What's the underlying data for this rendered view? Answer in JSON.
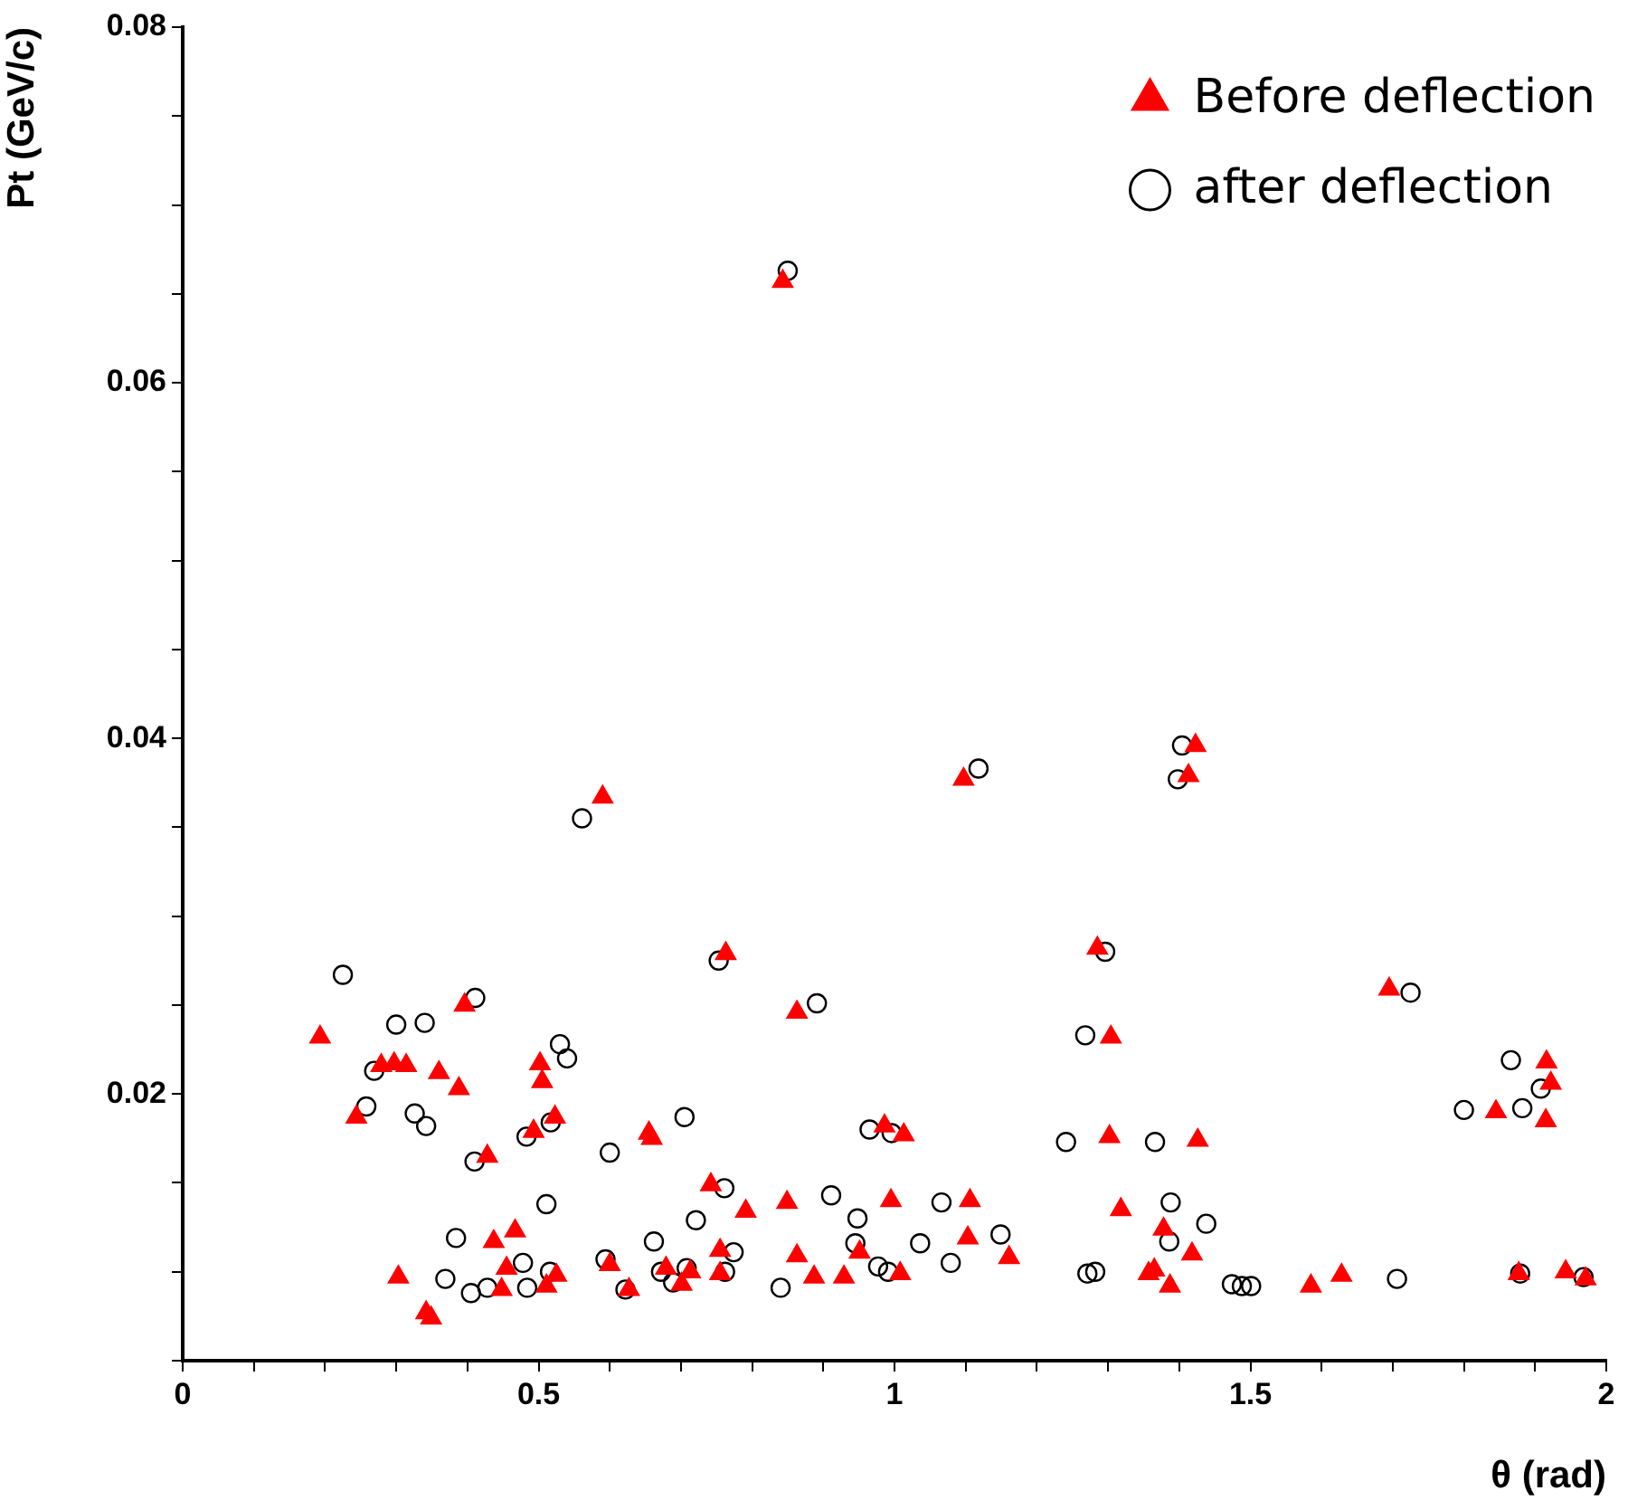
{
  "chart_data": {
    "type": "scatter",
    "xlabel": "θ (rad)",
    "ylabel": "Pt (GeV/c)",
    "xlim": [
      0,
      2
    ],
    "ylim": [
      0.005,
      0.08
    ],
    "xticks": [
      0,
      {
        "value": 0.1,
        "label": null
      },
      {
        "value": 0.2,
        "label": null
      },
      {
        "value": 0.3,
        "label": null
      },
      {
        "value": 0.4,
        "label": null
      },
      0.5,
      {
        "value": 0.6,
        "label": null
      },
      {
        "value": 0.7,
        "label": null
      },
      {
        "value": 0.8,
        "label": null
      },
      {
        "value": 0.9,
        "label": null
      },
      1,
      {
        "value": 1.1,
        "label": null
      },
      {
        "value": 1.2,
        "label": null
      },
      {
        "value": 1.3,
        "label": null
      },
      {
        "value": 1.4,
        "label": null
      },
      1.5,
      {
        "value": 1.6,
        "label": null
      },
      {
        "value": 1.7,
        "label": null
      },
      {
        "value": 1.8,
        "label": null
      },
      {
        "value": 1.9,
        "label": null
      },
      2
    ],
    "yticks": [
      {
        "value": 0.005,
        "label": null
      },
      {
        "value": 0.01,
        "label": null
      },
      {
        "value": 0.015,
        "label": null
      },
      0.02,
      {
        "value": 0.025,
        "label": null
      },
      {
        "value": 0.03,
        "label": null
      },
      {
        "value": 0.035,
        "label": null
      },
      0.04,
      {
        "value": 0.045,
        "label": null
      },
      {
        "value": 0.05,
        "label": null
      },
      {
        "value": 0.055,
        "label": null
      },
      0.06,
      {
        "value": 0.065,
        "label": null
      },
      {
        "value": 0.07,
        "label": null
      },
      {
        "value": 0.075,
        "label": null
      },
      0.08
    ],
    "grid": false,
    "legend": "top right",
    "series": [
      {
        "name": "Before deflection",
        "color": "#ff0000",
        "marker": "triangle",
        "x": [
          0.193,
          0.396,
          0.244,
          0.279,
          0.297,
          0.314,
          0.36,
          0.388,
          0.502,
          0.505,
          0.523,
          0.493,
          0.655,
          0.659,
          0.428,
          0.467,
          0.437,
          0.455,
          0.448,
          0.303,
          0.342,
          0.349,
          0.525,
          0.511,
          0.6,
          0.627,
          0.679,
          0.701,
          0.713,
          0.763,
          0.863,
          1.285,
          1.304,
          0.986,
          1.013,
          1.302,
          0.742,
          0.791,
          0.849,
          0.995,
          1.106,
          1.318,
          0.755,
          0.951,
          0.863,
          1.103,
          1.161,
          1.378,
          0.755,
          0.887,
          0.929,
          1.008,
          1.357,
          1.365,
          1.387,
          1.695,
          1.916,
          1.922,
          1.845,
          1.915,
          1.426,
          1.418,
          1.585,
          1.628,
          1.877,
          1.943,
          1.971,
          0.843,
          0.59,
          1.097,
          1.423,
          1.413
        ],
        "values": [
          0.0232,
          0.025,
          0.0187,
          0.0216,
          0.0217,
          0.0216,
          0.0212,
          0.0203,
          0.0217,
          0.0207,
          0.0187,
          0.0179,
          0.0178,
          0.0175,
          0.0165,
          0.0123,
          0.0117,
          0.0102,
          0.009,
          0.0097,
          0.0077,
          0.0074,
          0.0098,
          0.0092,
          0.0104,
          0.009,
          0.0102,
          0.0093,
          0.01,
          0.0279,
          0.0246,
          0.0282,
          0.0232,
          0.0182,
          0.0177,
          0.0176,
          0.0149,
          0.0134,
          0.0139,
          0.014,
          0.014,
          0.0135,
          0.0112,
          0.0111,
          0.0109,
          0.0119,
          0.0108,
          0.0124,
          0.0099,
          0.0097,
          0.0097,
          0.0099,
          0.0099,
          0.0101,
          0.0092,
          0.0259,
          0.0218,
          0.0206,
          0.019,
          0.0185,
          0.0174,
          0.011,
          0.0092,
          0.0098,
          0.0099,
          0.01,
          0.0096,
          0.0657,
          0.0367,
          0.0377,
          0.0396,
          0.0379
        ]
      },
      {
        "name": "after deflection",
        "color": "#000000",
        "marker": "circle",
        "x": [
          0.225,
          0.411,
          0.3,
          0.34,
          0.53,
          0.54,
          0.269,
          0.258,
          0.326,
          0.342,
          0.483,
          0.517,
          0.41,
          0.6,
          0.705,
          0.511,
          0.384,
          0.662,
          0.478,
          0.594,
          0.369,
          0.405,
          0.428,
          0.484,
          0.516,
          0.622,
          0.672,
          0.689,
          0.753,
          0.891,
          1.296,
          1.268,
          0.965,
          0.996,
          1.241,
          1.366,
          0.761,
          0.721,
          0.911,
          0.948,
          0.945,
          1.066,
          1.036,
          1.149,
          1.079,
          0.774,
          0.762,
          0.708,
          0.84,
          0.977,
          0.991,
          1.271,
          1.282,
          1.388,
          1.386,
          1.725,
          1.866,
          1.908,
          1.8,
          1.882,
          1.438,
          1.474,
          1.488,
          1.501,
          1.706,
          1.879,
          1.968,
          0.85,
          0.561,
          1.118,
          1.404,
          1.398
        ],
        "values": [
          0.0267,
          0.0254,
          0.0239,
          0.024,
          0.0228,
          0.022,
          0.0213,
          0.0193,
          0.0189,
          0.0182,
          0.0176,
          0.0184,
          0.0162,
          0.0167,
          0.0187,
          0.0138,
          0.0119,
          0.0117,
          0.0105,
          0.0107,
          0.0096,
          0.0088,
          0.0091,
          0.0091,
          0.01,
          0.009,
          0.01,
          0.0094,
          0.0275,
          0.0251,
          0.028,
          0.0233,
          0.018,
          0.0178,
          0.0173,
          0.0173,
          0.0147,
          0.0129,
          0.0143,
          0.013,
          0.0116,
          0.0139,
          0.0116,
          0.0121,
          0.0105,
          0.0111,
          0.01,
          0.0102,
          0.0091,
          0.0103,
          0.01,
          0.0099,
          0.01,
          0.0139,
          0.0117,
          0.0257,
          0.0219,
          0.0203,
          0.0191,
          0.0192,
          0.0127,
          0.0093,
          0.0092,
          0.0092,
          0.0096,
          0.0099,
          0.0097,
          0.0663,
          0.0355,
          0.0383,
          0.0396,
          0.0377
        ]
      }
    ]
  }
}
